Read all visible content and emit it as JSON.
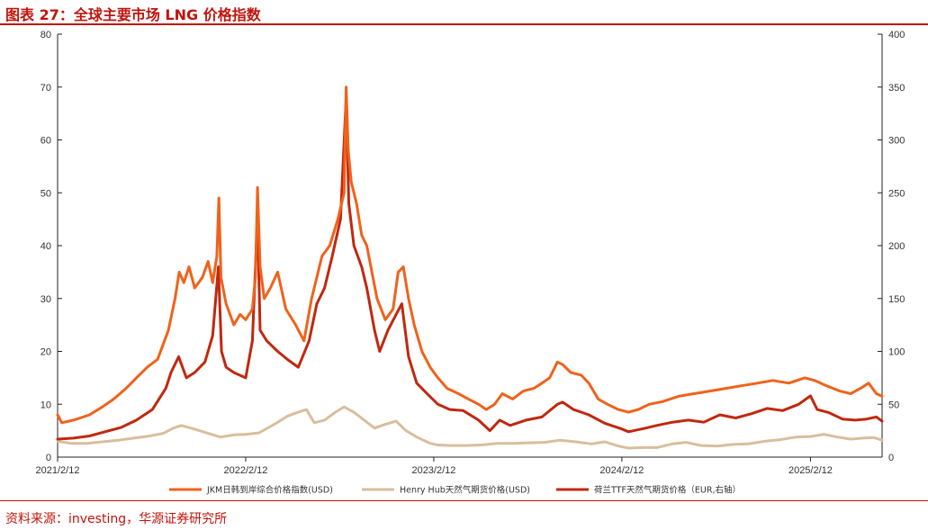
{
  "header": {
    "title": "图表 27：全球主要市场 LNG 价格指数"
  },
  "footer": {
    "source": "资料来源：investing，华源证券研究所"
  },
  "chart_data": {
    "type": "line",
    "title": "图表 27：全球主要市场 LNG 价格指数",
    "y_left": {
      "ylim": [
        0,
        80
      ],
      "ticks": [
        "0",
        "10",
        "20",
        "30",
        "40",
        "50",
        "60",
        "70",
        "80"
      ]
    },
    "y_right": {
      "ylim": [
        0,
        400
      ],
      "ticks": [
        "0",
        "50",
        "100",
        "150",
        "200",
        "250",
        "300",
        "350",
        "400"
      ]
    },
    "x_range": [
      "2021-02-12",
      "2025-07-01"
    ],
    "x_tick_labels": [
      "2021/2/12",
      "2022/2/12",
      "2023/2/12",
      "2024/2/12",
      "2025/2/12"
    ],
    "grid": false,
    "legend_position": "bottom",
    "colors": {
      "jkm": "#f0621b",
      "henry": "#d9be9c",
      "ttf": "#c0280f"
    },
    "series": [
      {
        "name": "JKM日韩到岸综合价格指数(USD)",
        "axis": "left",
        "points": [
          [
            "2021-02-12",
            8.0
          ],
          [
            "2021-02-20",
            6.5
          ],
          [
            "2021-03-15",
            7.0
          ],
          [
            "2021-04-15",
            8.0
          ],
          [
            "2021-05-10",
            9.5
          ],
          [
            "2021-06-01",
            11.0
          ],
          [
            "2021-06-25",
            13.0
          ],
          [
            "2021-07-15",
            15.0
          ],
          [
            "2021-08-05",
            17.0
          ],
          [
            "2021-08-25",
            18.5
          ],
          [
            "2021-09-15",
            24.0
          ],
          [
            "2021-09-28",
            30.0
          ],
          [
            "2021-10-06",
            35.0
          ],
          [
            "2021-10-15",
            33.0
          ],
          [
            "2021-10-25",
            36.0
          ],
          [
            "2021-11-05",
            32.0
          ],
          [
            "2021-11-20",
            34.0
          ],
          [
            "2021-12-01",
            37.0
          ],
          [
            "2021-12-10",
            33.0
          ],
          [
            "2021-12-18",
            38.0
          ],
          [
            "2021-12-22",
            49.0
          ],
          [
            "2021-12-26",
            34.0
          ],
          [
            "2022-01-05",
            29.0
          ],
          [
            "2022-01-20",
            25.0
          ],
          [
            "2022-02-01",
            27.0
          ],
          [
            "2022-02-12",
            26.0
          ],
          [
            "2022-02-25",
            28.0
          ],
          [
            "2022-03-03",
            34.0
          ],
          [
            "2022-03-07",
            51.0
          ],
          [
            "2022-03-12",
            36.0
          ],
          [
            "2022-03-20",
            30.0
          ],
          [
            "2022-04-01",
            32.0
          ],
          [
            "2022-04-15",
            35.0
          ],
          [
            "2022-05-01",
            28.0
          ],
          [
            "2022-05-20",
            25.0
          ],
          [
            "2022-06-05",
            22.0
          ],
          [
            "2022-06-20",
            30.0
          ],
          [
            "2022-07-10",
            38.0
          ],
          [
            "2022-07-25",
            40.0
          ],
          [
            "2022-08-10",
            45.0
          ],
          [
            "2022-08-22",
            50.0
          ],
          [
            "2022-08-26",
            70.0
          ],
          [
            "2022-08-30",
            58.0
          ],
          [
            "2022-09-05",
            52.0
          ],
          [
            "2022-09-15",
            48.0
          ],
          [
            "2022-09-25",
            42.0
          ],
          [
            "2022-10-05",
            40.0
          ],
          [
            "2022-10-15",
            35.0
          ],
          [
            "2022-10-25",
            30.0
          ],
          [
            "2022-11-10",
            26.0
          ],
          [
            "2022-11-25",
            28.0
          ],
          [
            "2022-12-05",
            35.0
          ],
          [
            "2022-12-15",
            36.0
          ],
          [
            "2022-12-25",
            30.0
          ],
          [
            "2023-01-05",
            25.0
          ],
          [
            "2023-01-20",
            20.0
          ],
          [
            "2023-02-05",
            17.0
          ],
          [
            "2023-02-20",
            15.0
          ],
          [
            "2023-03-10",
            13.0
          ],
          [
            "2023-04-01",
            12.0
          ],
          [
            "2023-04-20",
            11.0
          ],
          [
            "2023-05-10",
            10.0
          ],
          [
            "2023-05-25",
            9.0
          ],
          [
            "2023-06-10",
            10.0
          ],
          [
            "2023-06-25",
            12.0
          ],
          [
            "2023-07-15",
            11.0
          ],
          [
            "2023-08-05",
            12.5
          ],
          [
            "2023-08-25",
            13.0
          ],
          [
            "2023-09-10",
            14.0
          ],
          [
            "2023-09-25",
            15.0
          ],
          [
            "2023-10-10",
            18.0
          ],
          [
            "2023-10-20",
            17.5
          ],
          [
            "2023-11-05",
            16.0
          ],
          [
            "2023-11-25",
            15.5
          ],
          [
            "2023-12-10",
            14.0
          ],
          [
            "2023-12-28",
            11.0
          ],
          [
            "2024-01-15",
            10.0
          ],
          [
            "2024-02-05",
            9.0
          ],
          [
            "2024-02-25",
            8.5
          ],
          [
            "2024-03-15",
            9.0
          ],
          [
            "2024-04-05",
            10.0
          ],
          [
            "2024-05-01",
            10.5
          ],
          [
            "2024-06-01",
            11.5
          ],
          [
            "2024-07-01",
            12.0
          ],
          [
            "2024-08-01",
            12.5
          ],
          [
            "2024-09-01",
            13.0
          ],
          [
            "2024-10-01",
            13.5
          ],
          [
            "2024-11-01",
            14.0
          ],
          [
            "2024-12-01",
            14.5
          ],
          [
            "2025-01-01",
            14.0
          ],
          [
            "2025-02-01",
            15.0
          ],
          [
            "2025-02-20",
            14.5
          ],
          [
            "2025-03-15",
            13.5
          ],
          [
            "2025-04-10",
            12.5
          ],
          [
            "2025-05-01",
            12.0
          ],
          [
            "2025-05-20",
            13.0
          ],
          [
            "2025-06-05",
            14.0
          ],
          [
            "2025-06-20",
            12.0
          ],
          [
            "2025-07-01",
            11.5
          ]
        ]
      },
      {
        "name": "Henry Hub天然气期货价格(USD)",
        "axis": "left",
        "points": [
          [
            "2021-02-12",
            3.0
          ],
          [
            "2021-03-10",
            2.6
          ],
          [
            "2021-04-10",
            2.6
          ],
          [
            "2021-05-10",
            2.9
          ],
          [
            "2021-06-10",
            3.2
          ],
          [
            "2021-07-10",
            3.6
          ],
          [
            "2021-08-10",
            4.0
          ],
          [
            "2021-09-05",
            4.5
          ],
          [
            "2021-09-25",
            5.5
          ],
          [
            "2021-10-10",
            6.0
          ],
          [
            "2021-11-05",
            5.3
          ],
          [
            "2021-12-01",
            4.5
          ],
          [
            "2021-12-25",
            3.8
          ],
          [
            "2022-01-20",
            4.2
          ],
          [
            "2022-02-12",
            4.3
          ],
          [
            "2022-03-10",
            4.6
          ],
          [
            "2022-04-10",
            6.3
          ],
          [
            "2022-05-05",
            7.8
          ],
          [
            "2022-05-25",
            8.5
          ],
          [
            "2022-06-10",
            9.0
          ],
          [
            "2022-06-25",
            6.5
          ],
          [
            "2022-07-15",
            7.0
          ],
          [
            "2022-08-05",
            8.5
          ],
          [
            "2022-08-22",
            9.5
          ],
          [
            "2022-09-10",
            8.5
          ],
          [
            "2022-09-30",
            7.0
          ],
          [
            "2022-10-20",
            5.5
          ],
          [
            "2022-11-10",
            6.2
          ],
          [
            "2022-12-01",
            6.8
          ],
          [
            "2022-12-20",
            5.0
          ],
          [
            "2023-01-10",
            3.8
          ],
          [
            "2023-02-05",
            2.6
          ],
          [
            "2023-02-20",
            2.3
          ],
          [
            "2023-03-15",
            2.2
          ],
          [
            "2023-04-15",
            2.2
          ],
          [
            "2023-05-15",
            2.3
          ],
          [
            "2023-06-15",
            2.6
          ],
          [
            "2023-07-15",
            2.6
          ],
          [
            "2023-08-15",
            2.7
          ],
          [
            "2023-09-15",
            2.8
          ],
          [
            "2023-10-15",
            3.2
          ],
          [
            "2023-11-15",
            2.9
          ],
          [
            "2023-12-15",
            2.5
          ],
          [
            "2024-01-10",
            2.9
          ],
          [
            "2024-02-05",
            2.1
          ],
          [
            "2024-02-25",
            1.7
          ],
          [
            "2024-03-25",
            1.8
          ],
          [
            "2024-04-20",
            1.8
          ],
          [
            "2024-05-20",
            2.5
          ],
          [
            "2024-06-15",
            2.8
          ],
          [
            "2024-07-15",
            2.2
          ],
          [
            "2024-08-15",
            2.1
          ],
          [
            "2024-09-15",
            2.4
          ],
          [
            "2024-10-15",
            2.5
          ],
          [
            "2024-11-15",
            3.0
          ],
          [
            "2024-12-15",
            3.3
          ],
          [
            "2025-01-15",
            3.8
          ],
          [
            "2025-02-12",
            3.9
          ],
          [
            "2025-03-10",
            4.3
          ],
          [
            "2025-04-05",
            3.8
          ],
          [
            "2025-05-01",
            3.4
          ],
          [
            "2025-05-25",
            3.6
          ],
          [
            "2025-06-15",
            3.7
          ],
          [
            "2025-07-01",
            3.2
          ]
        ]
      },
      {
        "name": "荷兰TTF天然气期货价格（EUR,右轴）",
        "axis": "right",
        "points": [
          [
            "2021-02-12",
            17.0
          ],
          [
            "2021-03-15",
            18.0
          ],
          [
            "2021-04-15",
            20.0
          ],
          [
            "2021-05-15",
            24.0
          ],
          [
            "2021-06-15",
            28.0
          ],
          [
            "2021-07-15",
            35.0
          ],
          [
            "2021-08-15",
            45.0
          ],
          [
            "2021-09-10",
            65.0
          ],
          [
            "2021-09-20",
            80.0
          ],
          [
            "2021-10-05",
            95.0
          ],
          [
            "2021-10-20",
            75.0
          ],
          [
            "2021-11-05",
            80.0
          ],
          [
            "2021-11-25",
            90.0
          ],
          [
            "2021-12-10",
            115.0
          ],
          [
            "2021-12-21",
            180.0
          ],
          [
            "2021-12-27",
            100.0
          ],
          [
            "2022-01-05",
            85.0
          ],
          [
            "2022-01-20",
            80.0
          ],
          [
            "2022-02-12",
            75.0
          ],
          [
            "2022-02-25",
            110.0
          ],
          [
            "2022-03-07",
            227.0
          ],
          [
            "2022-03-12",
            120.0
          ],
          [
            "2022-03-25",
            110.0
          ],
          [
            "2022-04-15",
            100.0
          ],
          [
            "2022-05-05",
            92.0
          ],
          [
            "2022-05-25",
            85.0
          ],
          [
            "2022-06-15",
            110.0
          ],
          [
            "2022-06-30",
            145.0
          ],
          [
            "2022-07-15",
            160.0
          ],
          [
            "2022-07-30",
            190.0
          ],
          [
            "2022-08-15",
            225.0
          ],
          [
            "2022-08-26",
            340.0
          ],
          [
            "2022-08-31",
            240.0
          ],
          [
            "2022-09-10",
            200.0
          ],
          [
            "2022-09-25",
            180.0
          ],
          [
            "2022-10-05",
            160.0
          ],
          [
            "2022-10-20",
            120.0
          ],
          [
            "2022-10-30",
            100.0
          ],
          [
            "2022-11-15",
            120.0
          ],
          [
            "2022-12-01",
            135.0
          ],
          [
            "2022-12-12",
            145.0
          ],
          [
            "2022-12-25",
            95.0
          ],
          [
            "2023-01-10",
            70.0
          ],
          [
            "2023-01-30",
            60.0
          ],
          [
            "2023-02-20",
            50.0
          ],
          [
            "2023-03-15",
            45.0
          ],
          [
            "2023-04-10",
            44.0
          ],
          [
            "2023-05-10",
            35.0
          ],
          [
            "2023-06-01",
            25.0
          ],
          [
            "2023-06-20",
            35.0
          ],
          [
            "2023-07-10",
            30.0
          ],
          [
            "2023-08-10",
            35.0
          ],
          [
            "2023-09-10",
            38.0
          ],
          [
            "2023-10-10",
            50.0
          ],
          [
            "2023-10-20",
            52.0
          ],
          [
            "2023-11-10",
            45.0
          ],
          [
            "2023-12-10",
            40.0
          ],
          [
            "2024-01-10",
            32.0
          ],
          [
            "2024-02-10",
            27.0
          ],
          [
            "2024-02-25",
            24.0
          ],
          [
            "2024-03-25",
            27.0
          ],
          [
            "2024-04-20",
            30.0
          ],
          [
            "2024-05-20",
            33.0
          ],
          [
            "2024-06-20",
            35.0
          ],
          [
            "2024-07-20",
            33.0
          ],
          [
            "2024-08-20",
            40.0
          ],
          [
            "2024-09-20",
            37.0
          ],
          [
            "2024-10-20",
            41.0
          ],
          [
            "2024-11-20",
            46.0
          ],
          [
            "2024-12-20",
            44.0
          ],
          [
            "2025-01-20",
            50.0
          ],
          [
            "2025-02-12",
            58.0
          ],
          [
            "2025-02-25",
            45.0
          ],
          [
            "2025-03-20",
            42.0
          ],
          [
            "2025-04-15",
            36.0
          ],
          [
            "2025-05-10",
            35.0
          ],
          [
            "2025-06-01",
            36.0
          ],
          [
            "2025-06-20",
            38.0
          ],
          [
            "2025-07-01",
            34.0
          ]
        ]
      }
    ]
  }
}
